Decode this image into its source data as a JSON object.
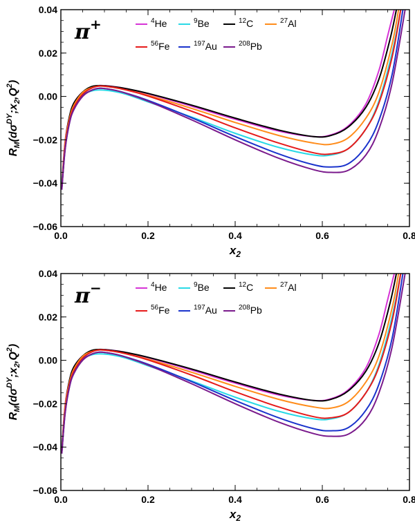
{
  "chart_data": [
    {
      "type": "line",
      "panel_label": "π",
      "panel_label_sup": "+",
      "ylabel": "R_M(dσ^DY;x_2,Q^2)",
      "xlabel": "x_2",
      "xlim": [
        0.0,
        0.8
      ],
      "ylim": [
        -0.06,
        0.04
      ],
      "xticks": [
        "0.0",
        "0.2",
        "0.4",
        "0.6",
        "0.8"
      ],
      "yticks": [
        "-0.06",
        "-0.04",
        "-0.02",
        "0.00",
        "0.02",
        "0.04"
      ],
      "legend_position": "top",
      "series": [
        {
          "name": "4He",
          "color": "#d633d6",
          "x": [
            0.002,
            0.01,
            0.02,
            0.03,
            0.05,
            0.07,
            0.09,
            0.12,
            0.15,
            0.2,
            0.3,
            0.4,
            0.5,
            0.58,
            0.62,
            0.66,
            0.7,
            0.73,
            0.75,
            0.765
          ],
          "y": [
            -0.04,
            -0.02,
            -0.009,
            -0.003,
            0.002,
            0.004,
            0.005,
            0.0046,
            0.0036,
            0.0012,
            -0.0045,
            -0.0105,
            -0.016,
            -0.0185,
            -0.0177,
            -0.0135,
            -0.0035,
            0.012,
            0.028,
            0.04
          ]
        },
        {
          "name": "9Be",
          "color": "#29d9e6",
          "x": [
            0.002,
            0.01,
            0.02,
            0.03,
            0.05,
            0.07,
            0.09,
            0.12,
            0.15,
            0.2,
            0.3,
            0.4,
            0.5,
            0.58,
            0.62,
            0.66,
            0.7,
            0.73,
            0.76,
            0.78
          ],
          "y": [
            -0.04,
            -0.022,
            -0.011,
            -0.005,
            0.0005,
            0.0025,
            0.003,
            0.0024,
            0.001,
            -0.0025,
            -0.0095,
            -0.017,
            -0.0235,
            -0.027,
            -0.027,
            -0.024,
            -0.015,
            -0.002,
            0.02,
            0.04
          ]
        },
        {
          "name": "12C",
          "color": "#000000",
          "x": [
            0.002,
            0.01,
            0.02,
            0.03,
            0.05,
            0.07,
            0.09,
            0.12,
            0.15,
            0.2,
            0.3,
            0.4,
            0.5,
            0.58,
            0.62,
            0.66,
            0.7,
            0.73,
            0.755,
            0.77
          ],
          "y": [
            -0.042,
            -0.021,
            -0.009,
            -0.003,
            0.002,
            0.0045,
            0.005,
            0.0045,
            0.0036,
            0.0014,
            -0.004,
            -0.01,
            -0.0155,
            -0.0185,
            -0.018,
            -0.014,
            -0.005,
            0.008,
            0.026,
            0.04
          ]
        },
        {
          "name": "27Al",
          "color": "#ff8c1a",
          "x": [
            0.002,
            0.01,
            0.02,
            0.03,
            0.05,
            0.07,
            0.09,
            0.12,
            0.15,
            0.2,
            0.3,
            0.4,
            0.5,
            0.58,
            0.62,
            0.66,
            0.7,
            0.73,
            0.76,
            0.775
          ],
          "y": [
            -0.042,
            -0.021,
            -0.01,
            -0.004,
            0.0018,
            0.004,
            0.0048,
            0.0042,
            0.003,
            0.0005,
            -0.0055,
            -0.012,
            -0.018,
            -0.0215,
            -0.022,
            -0.019,
            -0.01,
            0.002,
            0.024,
            0.04
          ]
        },
        {
          "name": "56Fe",
          "color": "#e61a1a",
          "x": [
            0.002,
            0.01,
            0.02,
            0.03,
            0.05,
            0.07,
            0.09,
            0.12,
            0.15,
            0.2,
            0.3,
            0.4,
            0.5,
            0.58,
            0.62,
            0.66,
            0.7,
            0.73,
            0.76,
            0.78
          ],
          "y": [
            -0.043,
            -0.023,
            -0.011,
            -0.005,
            0.001,
            0.0038,
            0.0048,
            0.0042,
            0.003,
            0.0002,
            -0.0068,
            -0.0145,
            -0.0215,
            -0.026,
            -0.0265,
            -0.024,
            -0.015,
            -0.003,
            0.018,
            0.04
          ]
        },
        {
          "name": "197Au",
          "color": "#1a33cc",
          "x": [
            0.002,
            0.01,
            0.02,
            0.03,
            0.05,
            0.07,
            0.09,
            0.12,
            0.15,
            0.2,
            0.3,
            0.4,
            0.5,
            0.58,
            0.62,
            0.66,
            0.7,
            0.73,
            0.76,
            0.785
          ],
          "y": [
            -0.043,
            -0.024,
            -0.012,
            -0.006,
            0.0002,
            0.0028,
            0.0038,
            0.003,
            0.0015,
            -0.0018,
            -0.0098,
            -0.0185,
            -0.0265,
            -0.0315,
            -0.0325,
            -0.031,
            -0.023,
            -0.011,
            0.01,
            0.04
          ]
        },
        {
          "name": "208Pb",
          "color": "#7a1a8c",
          "x": [
            0.002,
            0.01,
            0.02,
            0.03,
            0.05,
            0.07,
            0.09,
            0.12,
            0.15,
            0.2,
            0.3,
            0.4,
            0.5,
            0.58,
            0.62,
            0.66,
            0.7,
            0.73,
            0.76,
            0.79
          ],
          "y": [
            -0.043,
            -0.024,
            -0.012,
            -0.006,
            0.0,
            0.0028,
            0.0038,
            0.003,
            0.0014,
            -0.0022,
            -0.0108,
            -0.02,
            -0.0285,
            -0.0338,
            -0.035,
            -0.034,
            -0.027,
            -0.015,
            0.006,
            0.04
          ]
        }
      ]
    },
    {
      "type": "line",
      "panel_label": "π",
      "panel_label_sup": "−",
      "ylabel": "R_M(dσ^DY;x_2,Q^2)",
      "xlabel": "x_2",
      "xlim": [
        0.0,
        0.8
      ],
      "ylim": [
        -0.06,
        0.04
      ],
      "xticks": [
        "0.0",
        "0.2",
        "0.4",
        "0.6",
        "0.8"
      ],
      "yticks": [
        "-0.06",
        "-0.04",
        "-0.02",
        "0.00",
        "0.02",
        "0.04"
      ],
      "legend_position": "top",
      "series": [
        {
          "name": "4He",
          "color": "#d633d6",
          "x": [
            0.002,
            0.01,
            0.02,
            0.03,
            0.05,
            0.07,
            0.09,
            0.12,
            0.15,
            0.2,
            0.3,
            0.4,
            0.5,
            0.58,
            0.62,
            0.66,
            0.7,
            0.73,
            0.75,
            0.765
          ],
          "y": [
            -0.04,
            -0.02,
            -0.009,
            -0.003,
            0.002,
            0.004,
            0.005,
            0.0046,
            0.0036,
            0.0012,
            -0.0045,
            -0.0105,
            -0.016,
            -0.0185,
            -0.0177,
            -0.0135,
            -0.0035,
            0.012,
            0.028,
            0.04
          ]
        },
        {
          "name": "9Be",
          "color": "#29d9e6",
          "x": [
            0.002,
            0.01,
            0.02,
            0.03,
            0.05,
            0.07,
            0.09,
            0.12,
            0.15,
            0.2,
            0.3,
            0.4,
            0.5,
            0.58,
            0.62,
            0.66,
            0.7,
            0.73,
            0.76,
            0.78
          ],
          "y": [
            -0.04,
            -0.022,
            -0.011,
            -0.005,
            0.0005,
            0.0025,
            0.003,
            0.0024,
            0.001,
            -0.0025,
            -0.0095,
            -0.017,
            -0.0235,
            -0.027,
            -0.027,
            -0.024,
            -0.015,
            -0.002,
            0.02,
            0.04
          ]
        },
        {
          "name": "12C",
          "color": "#000000",
          "x": [
            0.002,
            0.01,
            0.02,
            0.03,
            0.05,
            0.07,
            0.09,
            0.12,
            0.15,
            0.2,
            0.3,
            0.4,
            0.5,
            0.58,
            0.62,
            0.66,
            0.7,
            0.73,
            0.755,
            0.77
          ],
          "y": [
            -0.042,
            -0.021,
            -0.009,
            -0.003,
            0.002,
            0.0045,
            0.005,
            0.0045,
            0.0036,
            0.0014,
            -0.004,
            -0.01,
            -0.0155,
            -0.0185,
            -0.018,
            -0.014,
            -0.005,
            0.008,
            0.026,
            0.04
          ]
        },
        {
          "name": "27Al",
          "color": "#ff8c1a",
          "x": [
            0.002,
            0.01,
            0.02,
            0.03,
            0.05,
            0.07,
            0.09,
            0.12,
            0.15,
            0.2,
            0.3,
            0.4,
            0.5,
            0.58,
            0.62,
            0.66,
            0.7,
            0.73,
            0.76,
            0.775
          ],
          "y": [
            -0.042,
            -0.021,
            -0.01,
            -0.004,
            0.0018,
            0.004,
            0.0048,
            0.0042,
            0.003,
            0.0005,
            -0.0055,
            -0.012,
            -0.018,
            -0.0215,
            -0.022,
            -0.019,
            -0.01,
            0.002,
            0.024,
            0.04
          ]
        },
        {
          "name": "56Fe",
          "color": "#e61a1a",
          "x": [
            0.002,
            0.01,
            0.02,
            0.03,
            0.05,
            0.07,
            0.09,
            0.12,
            0.15,
            0.2,
            0.3,
            0.4,
            0.5,
            0.58,
            0.62,
            0.66,
            0.7,
            0.73,
            0.76,
            0.78
          ],
          "y": [
            -0.043,
            -0.023,
            -0.011,
            -0.005,
            0.001,
            0.0038,
            0.0048,
            0.0042,
            0.003,
            0.0002,
            -0.0068,
            -0.0145,
            -0.0215,
            -0.026,
            -0.0265,
            -0.024,
            -0.015,
            -0.003,
            0.018,
            0.04
          ]
        },
        {
          "name": "197Au",
          "color": "#1a33cc",
          "x": [
            0.002,
            0.01,
            0.02,
            0.03,
            0.05,
            0.07,
            0.09,
            0.12,
            0.15,
            0.2,
            0.3,
            0.4,
            0.5,
            0.58,
            0.62,
            0.66,
            0.7,
            0.73,
            0.76,
            0.785
          ],
          "y": [
            -0.043,
            -0.024,
            -0.012,
            -0.006,
            0.0002,
            0.0028,
            0.0038,
            0.003,
            0.0015,
            -0.0018,
            -0.0098,
            -0.0185,
            -0.0265,
            -0.0315,
            -0.0325,
            -0.031,
            -0.023,
            -0.011,
            0.01,
            0.04
          ]
        },
        {
          "name": "208Pb",
          "color": "#7a1a8c",
          "x": [
            0.002,
            0.01,
            0.02,
            0.03,
            0.05,
            0.07,
            0.09,
            0.12,
            0.15,
            0.2,
            0.3,
            0.4,
            0.5,
            0.58,
            0.62,
            0.66,
            0.7,
            0.73,
            0.76,
            0.79
          ],
          "y": [
            -0.043,
            -0.024,
            -0.012,
            -0.006,
            0.0,
            0.0028,
            0.0038,
            0.003,
            0.0014,
            -0.0022,
            -0.0108,
            -0.02,
            -0.0285,
            -0.0338,
            -0.035,
            -0.034,
            -0.027,
            -0.015,
            0.006,
            0.04
          ]
        }
      ]
    }
  ]
}
